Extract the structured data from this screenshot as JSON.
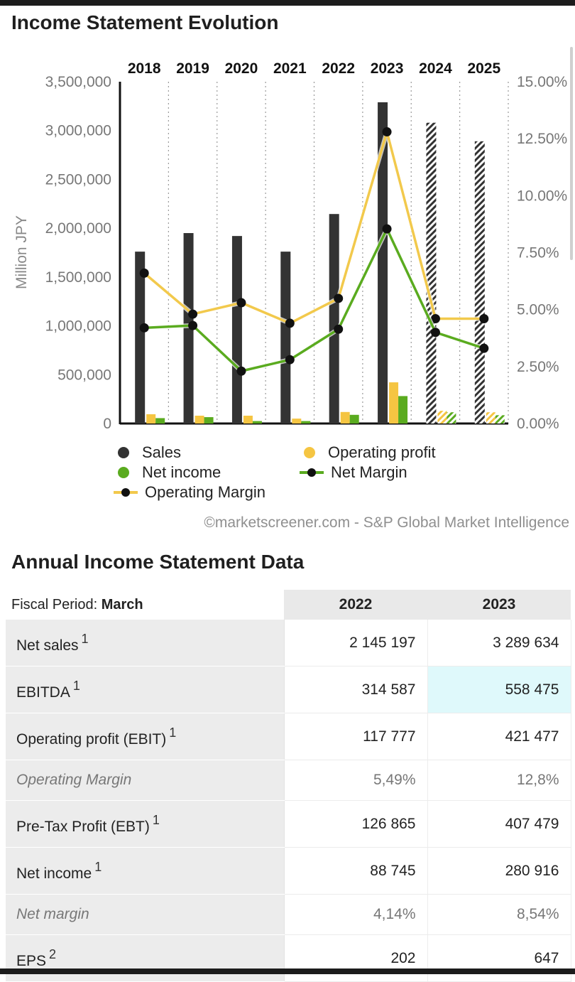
{
  "page": {
    "chart_title": "Income Statement Evolution",
    "credit": "©marketscreener.com - S&P Global Market Intelligence",
    "table_title": "Annual Income Statement Data"
  },
  "colors": {
    "sales": "#333333",
    "operating_profit": "#f5c542",
    "net_income": "#5aab1f",
    "net_margin_line": "#5aab1f",
    "operating_margin_line": "#f2c94c",
    "marker": "#111111",
    "highlight": "#dff9fb"
  },
  "chart_data": {
    "type": "bar",
    "categories": [
      "2018",
      "2019",
      "2020",
      "2021",
      "2022",
      "2023",
      "2024",
      "2025"
    ],
    "estimated_from_index": 6,
    "ylabel": "Million JPY",
    "ylim": [
      0,
      3500000
    ],
    "y_ticks": [
      0,
      500000,
      1000000,
      1500000,
      2000000,
      2500000,
      3000000,
      3500000
    ],
    "y_tick_labels": [
      "0",
      "500,000",
      "1,000,000",
      "1,500,000",
      "2,000,000",
      "2,500,000",
      "3,000,000",
      "3,500,000"
    ],
    "y2lim": [
      0,
      15
    ],
    "y2_ticks": [
      0,
      2.5,
      5,
      7.5,
      10,
      12.5,
      15
    ],
    "y2_tick_labels": [
      "0.00%",
      "2.50%",
      "5.00%",
      "7.50%",
      "10.00%",
      "12.50%",
      "15.00%"
    ],
    "grid": "vertical dotted",
    "legend_position": "bottom",
    "series": [
      {
        "name": "Sales",
        "kind": "bar",
        "axis": "left",
        "values": [
          1760000,
          1950000,
          1920000,
          1760000,
          2145197,
          3289634,
          3080000,
          2890000
        ]
      },
      {
        "name": "Operating profit",
        "kind": "bar",
        "axis": "left",
        "values": [
          95000,
          80000,
          80000,
          50000,
          117777,
          421477,
          130000,
          115000
        ]
      },
      {
        "name": "Net income",
        "kind": "bar",
        "axis": "left",
        "values": [
          55000,
          65000,
          25000,
          25000,
          88745,
          280916,
          115000,
          85000
        ]
      },
      {
        "name": "Net Margin",
        "kind": "line",
        "axis": "right",
        "values": [
          4.2,
          4.3,
          2.3,
          2.8,
          4.14,
          8.54,
          4.0,
          3.3
        ]
      },
      {
        "name": "Operating Margin",
        "kind": "line",
        "axis": "right",
        "values": [
          6.6,
          4.8,
          5.3,
          4.4,
          5.49,
          12.8,
          4.6,
          4.6
        ]
      }
    ]
  },
  "table": {
    "period_label": "Fiscal Period: ",
    "period_value": "March",
    "columns": [
      "2022",
      "2023"
    ],
    "rows": [
      {
        "label": "Net sales",
        "note": "1",
        "italic": false,
        "values": [
          "2 145 197",
          "3 289 634"
        ]
      },
      {
        "label": "EBITDA",
        "note": "1",
        "italic": false,
        "values": [
          "314 587",
          "558 475"
        ]
      },
      {
        "label": "Operating profit (EBIT)",
        "note": "1",
        "italic": false,
        "values": [
          "117 777",
          "421 477"
        ]
      },
      {
        "label": "Operating Margin",
        "note": "",
        "italic": true,
        "values": [
          "5,49%",
          "12,8%"
        ]
      },
      {
        "label": "Pre-Tax Profit (EBT)",
        "note": "1",
        "italic": false,
        "values": [
          "126 865",
          "407 479"
        ]
      },
      {
        "label": "Net income",
        "note": "1",
        "italic": false,
        "values": [
          "88 745",
          "280 916"
        ]
      },
      {
        "label": "Net margin",
        "note": "",
        "italic": true,
        "values": [
          "4,14%",
          "8,54%"
        ]
      },
      {
        "label": "EPS",
        "note": "2",
        "italic": false,
        "values": [
          "202",
          "647"
        ]
      }
    ]
  }
}
